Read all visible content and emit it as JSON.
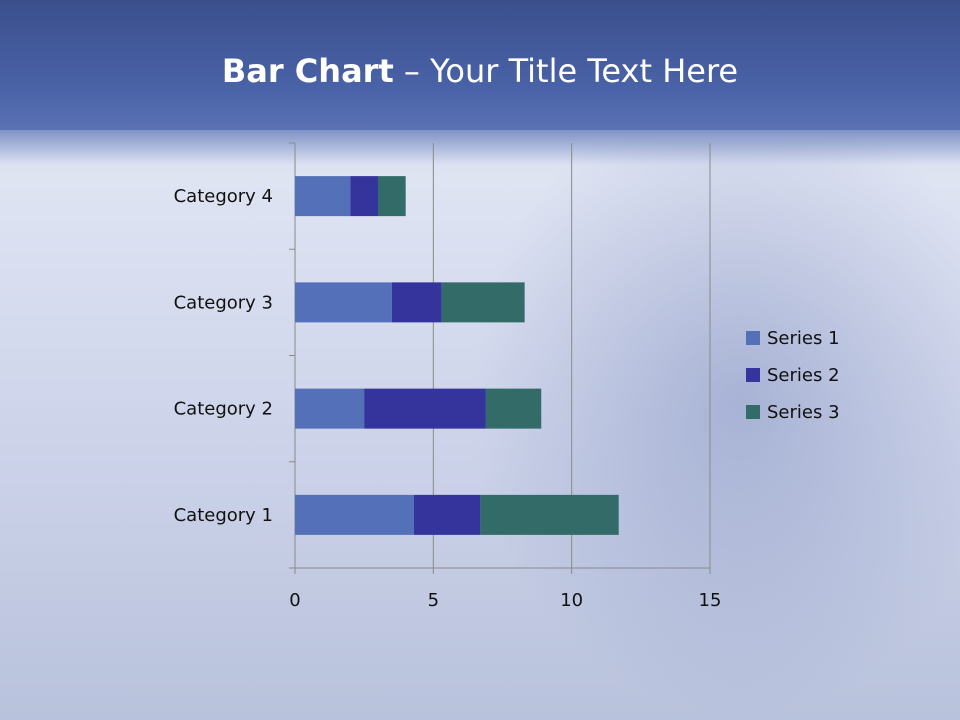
{
  "slide": {
    "title_bold": "Bar Chart",
    "title_rest": " – Your Title Text Here"
  },
  "chart_data": {
    "type": "bar",
    "orientation": "horizontal",
    "stacked": true,
    "categories": [
      "Category 1",
      "Category 2",
      "Category 3",
      "Category 4"
    ],
    "series": [
      {
        "name": "Series 1",
        "values": [
          4.3,
          2.5,
          3.5,
          2.0
        ],
        "color": "#5470B8"
      },
      {
        "name": "Series 2",
        "values": [
          2.4,
          4.4,
          1.8,
          1.0
        ],
        "color": "#34349C"
      },
      {
        "name": "Series 3",
        "values": [
          5.0,
          2.0,
          3.0,
          1.0
        ],
        "color": "#336B68"
      }
    ],
    "xlim": [
      0,
      15
    ],
    "xticks": [
      "0",
      "5",
      "10",
      "15"
    ],
    "grid": "vertical major",
    "legend": "right"
  }
}
